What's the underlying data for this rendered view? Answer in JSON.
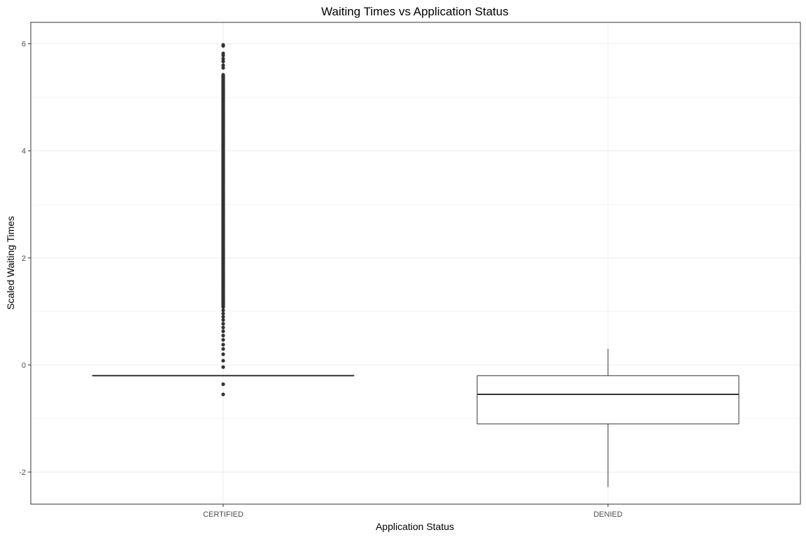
{
  "chart_data": {
    "type": "boxplot",
    "title": "Waiting Times vs Application Status",
    "xlabel": "Application Status",
    "ylabel": "Scaled Waiting Times",
    "categories": [
      "CERTIFIED",
      "DENIED"
    ],
    "ylim": [
      -2.6,
      6.4
    ],
    "yticks": [
      -2,
      0,
      2,
      4,
      6
    ],
    "grid": true,
    "boxes": [
      {
        "category": "CERTIFIED",
        "whisker_low": -0.2,
        "q1": -0.2,
        "median": -0.2,
        "q3": -0.2,
        "whisker_high": -0.2,
        "outliers": [
          -0.55,
          -0.36,
          -0.04,
          0.08,
          0.2,
          0.3,
          0.38,
          0.47,
          0.55,
          0.63,
          0.7,
          0.77,
          0.84,
          0.9,
          0.96,
          1.02,
          1.08
        ],
        "outlier_band": [
          1.1,
          5.42
        ],
        "outliers_high": [
          5.55,
          5.6,
          5.67,
          5.72,
          5.78,
          5.82,
          5.96,
          5.98
        ]
      },
      {
        "category": "DENIED",
        "whisker_low": -2.28,
        "q1": -1.1,
        "median": -0.55,
        "q3": -0.2,
        "whisker_high": 0.3,
        "outliers": []
      }
    ]
  }
}
